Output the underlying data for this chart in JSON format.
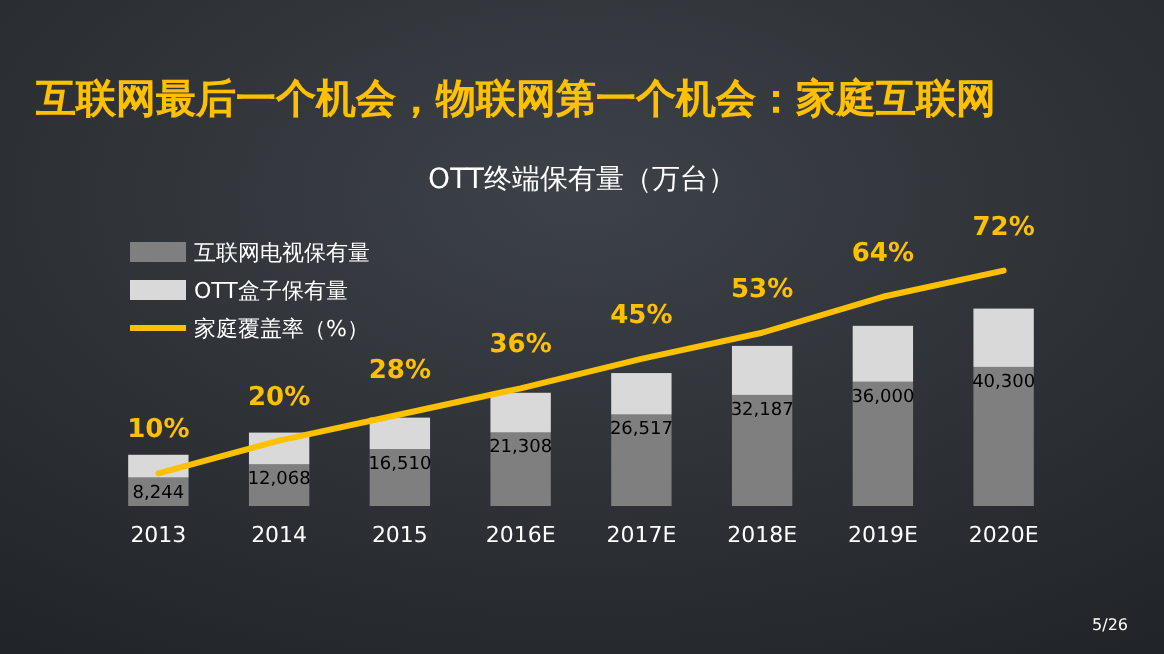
{
  "chart_data": {
    "type": "bar",
    "title": "互联网最后一个机会，物联网第一个机会：家庭互联网",
    "subtitle": "OTT终端保有量（万台）",
    "categories": [
      "2013",
      "2014",
      "2015",
      "2016E",
      "2017E",
      "2018E",
      "2019E",
      "2020E"
    ],
    "stacked": true,
    "series": [
      {
        "name": "互联网电视保有量",
        "color": "#7f7f7f",
        "values": [
          8244,
          12068,
          16510,
          21308,
          26517,
          32187,
          36000,
          40300
        ],
        "value_labels": [
          "8,244",
          "12,068",
          "16,510",
          "21,308",
          "26,517",
          "32,187",
          "36,000",
          "40,300"
        ]
      },
      {
        "name": "OTT盒子保有量",
        "color": "#d9d9d9",
        "values": [
          6600,
          9200,
          9100,
          11500,
          12000,
          14200,
          16200,
          16900
        ]
      },
      {
        "name": "家庭覆盖率（%）",
        "type": "line",
        "axis": "y2",
        "color": "#ffc000",
        "values": [
          10,
          20,
          28,
          36,
          45,
          53,
          64,
          72
        ],
        "value_labels": [
          "10%",
          "20%",
          "28%",
          "36%",
          "45%",
          "53%",
          "64%",
          "72%"
        ]
      }
    ],
    "tick_labels": "x",
    "legend": "top left",
    "annotations": [
      "5/26"
    ]
  }
}
